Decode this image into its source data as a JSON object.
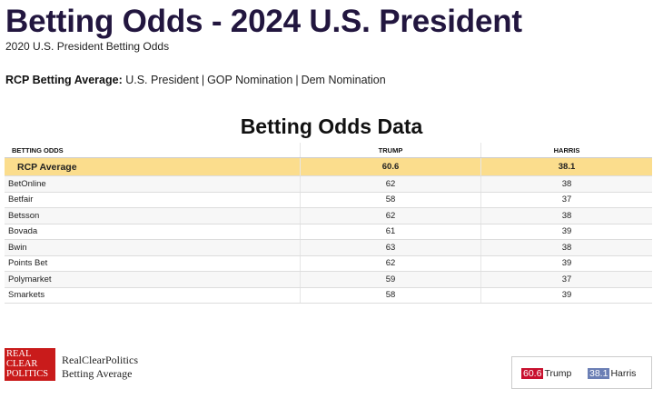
{
  "header": {
    "title": "Betting Odds - 2024 U.S. President",
    "sub_link": "2020 U.S. President Betting Odds"
  },
  "rcp_average": {
    "label": "RCP Betting Average:",
    "links": [
      "U.S. President",
      "GOP Nomination",
      "Dem Nomination"
    ],
    "separator": "|"
  },
  "table": {
    "title": "Betting Odds Data",
    "headers": [
      "BETTING ODDS",
      "TRUMP",
      "HARRIS"
    ],
    "average_row": {
      "source": "RCP Average",
      "trump": "60.6",
      "harris": "38.1"
    },
    "rows": [
      {
        "source": "BetOnline",
        "trump": "62",
        "harris": "38"
      },
      {
        "source": "Betfair",
        "trump": "58",
        "harris": "37"
      },
      {
        "source": "Betsson",
        "trump": "62",
        "harris": "38"
      },
      {
        "source": "Bovada",
        "trump": "61",
        "harris": "39"
      },
      {
        "source": "Bwin",
        "trump": "63",
        "harris": "38"
      },
      {
        "source": "Points Bet",
        "trump": "62",
        "harris": "39"
      },
      {
        "source": "Polymarket",
        "trump": "59",
        "harris": "37"
      },
      {
        "source": "Smarkets",
        "trump": "58",
        "harris": "39"
      }
    ]
  },
  "footer": {
    "logo_text": [
      "REAL",
      "CLEAR",
      "POLITICS"
    ],
    "brand_line1": "RealClearPolitics",
    "brand_line2": "Betting Average",
    "legend": [
      {
        "value": "60.6",
        "name": "Trump",
        "color": "#c8102e"
      },
      {
        "value": "38.1",
        "name": "Harris",
        "color": "#6b7fb5"
      }
    ]
  },
  "colors": {
    "title": "#22163f",
    "average_row_bg": "#fbdd8d",
    "logo_bg": "#c91b1b"
  }
}
